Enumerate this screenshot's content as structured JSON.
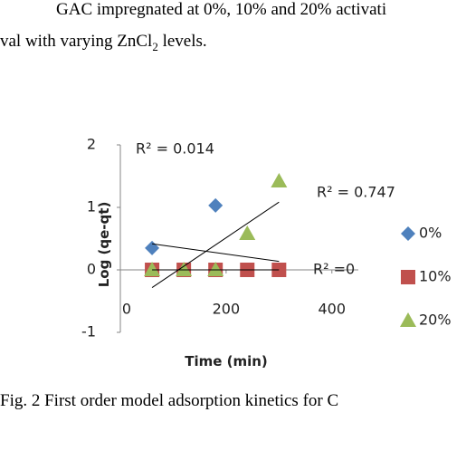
{
  "document": {
    "lines": [
      "GAC impregnated at 0%, 10% and 20% activati",
      [
        "val with varying ZnCl",
        "2",
        " levels."
      ]
    ],
    "caption": "Fig. 2 First order model adsorption kinetics for C"
  },
  "chart_data": {
    "type": "scatter",
    "x_title": "Time (min)",
    "y_title": "Log (qe-qt)",
    "x": [
      60,
      120,
      180,
      240,
      300
    ],
    "series": [
      {
        "name": "0%",
        "color": "#4f81bd",
        "marker": "diamond",
        "values": [
          0.35,
          0,
          1.03,
          0,
          0
        ]
      },
      {
        "name": "10%",
        "color": "#c0504d",
        "marker": "square",
        "values": [
          0,
          0,
          0,
          0,
          0
        ]
      },
      {
        "name": "20%",
        "color": "#9bbb59",
        "marker": "triangle",
        "values": [
          0,
          0,
          0,
          0.58,
          1.42
        ]
      }
    ],
    "trendline": true,
    "annotations": [
      "R² = 0.014",
      "R² = 0.747",
      "R² =0"
    ],
    "xlim": [
      0,
      450
    ],
    "xticks": [
      0,
      200,
      400
    ],
    "ylim": [
      -1,
      2
    ],
    "yticks": [
      -1,
      0,
      1,
      2
    ],
    "grid": false,
    "legend": "right"
  }
}
